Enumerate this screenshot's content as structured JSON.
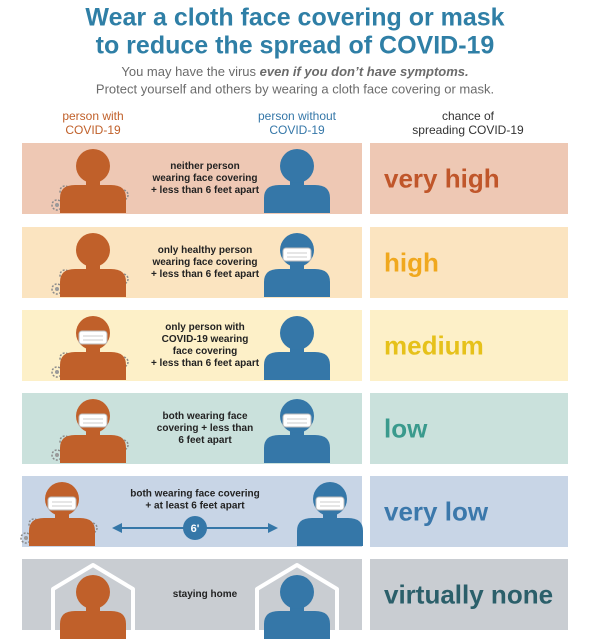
{
  "header": {
    "title": [
      "Wear a cloth face covering or mask",
      "to reduce the spread of COVID-19"
    ],
    "subtitle": [
      [
        "You may have the virus ",
        "even if you don’t have symptoms."
      ],
      "Protect yourself and others by wearing a cloth face covering or mask."
    ]
  },
  "columns": [
    [
      "person with",
      "COVID-19"
    ],
    [
      "person without",
      "COVID-19"
    ],
    [
      "chance of",
      "spreading COVID-19"
    ]
  ],
  "rows": [
    {
      "description": [
        "neither person",
        "wearing face covering",
        "+ less than 6 feet apart"
      ],
      "level": "very high"
    },
    {
      "description": [
        "only healthy person",
        "wearing face covering",
        "+ less than 6 feet apart"
      ],
      "level": "high"
    },
    {
      "description": [
        "only person with",
        "COVID-19 wearing",
        "face covering",
        "+ less than 6 feet apart"
      ],
      "level": "medium"
    },
    {
      "description": [
        "both wearing face",
        "covering + less than",
        "6 feet apart"
      ],
      "level": "low"
    },
    {
      "description": [
        "both wearing face covering",
        "+ at least 6 feet apart"
      ],
      "level": "very low",
      "distance": "6'"
    },
    {
      "description": [
        "staying home"
      ],
      "level": "virtually none"
    }
  ]
}
